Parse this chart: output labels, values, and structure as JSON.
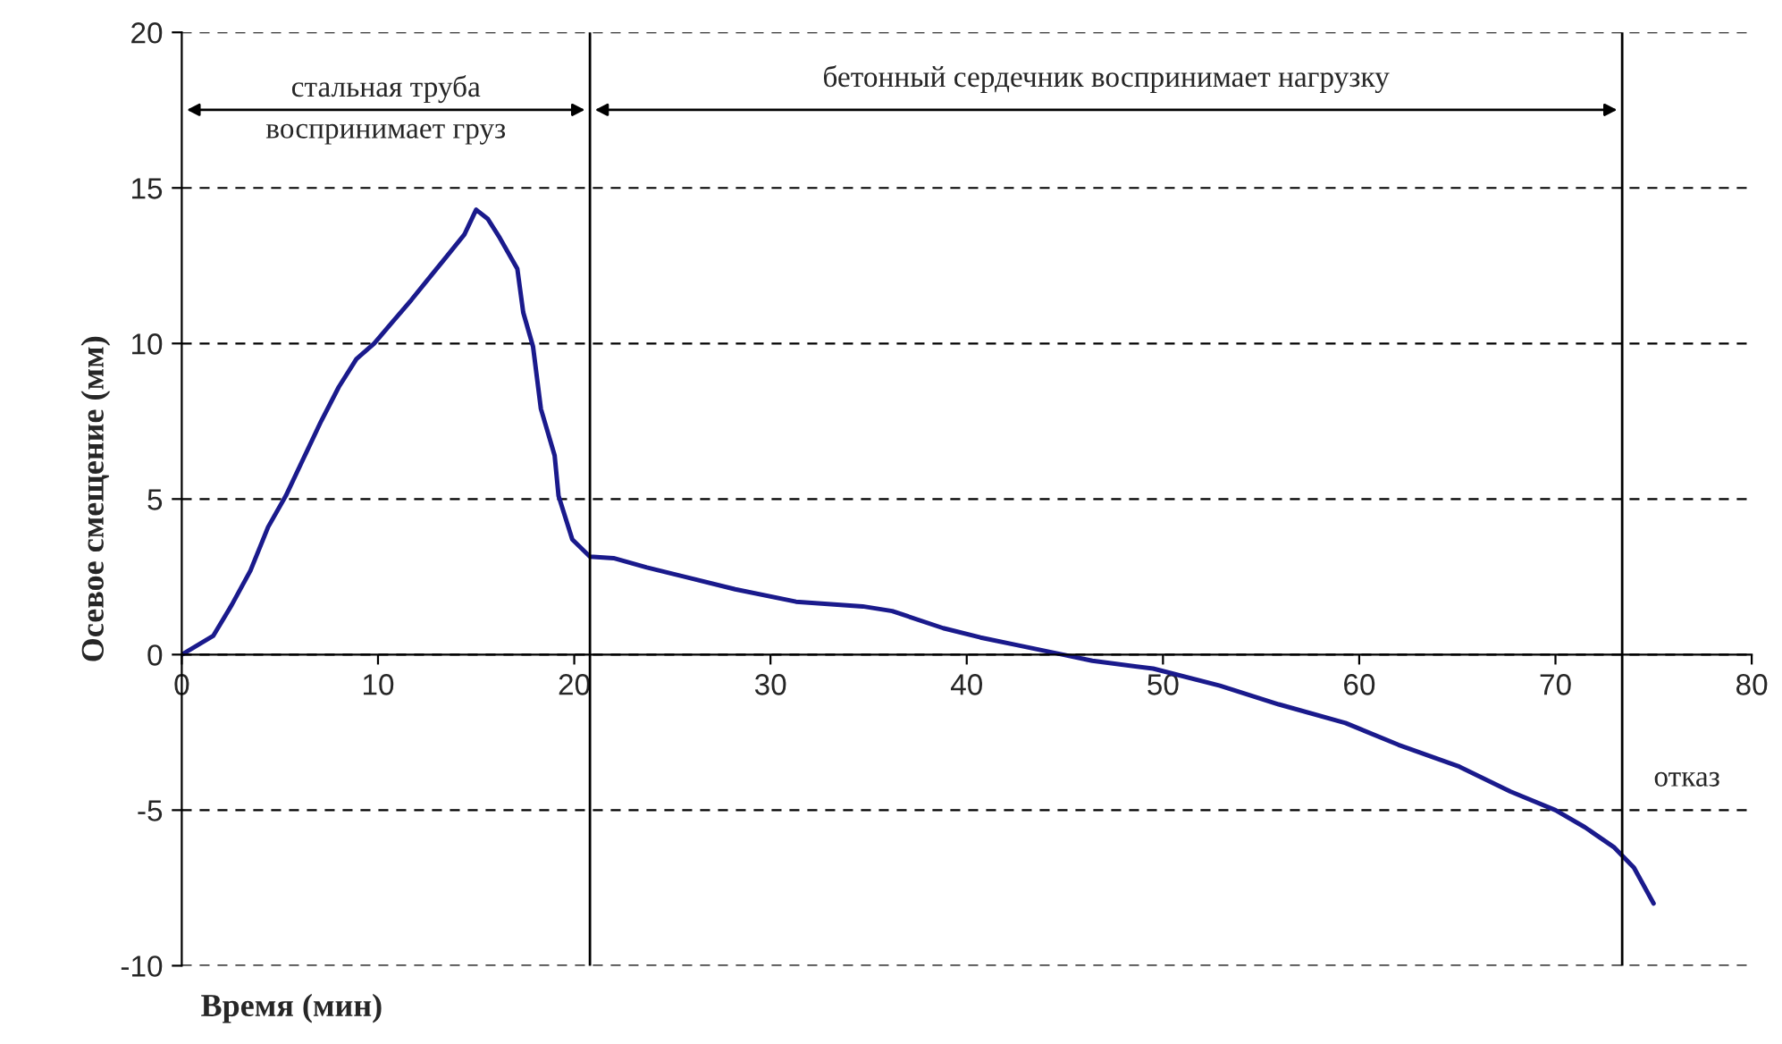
{
  "chart_data": {
    "type": "line",
    "xlabel": "Время (мин)",
    "ylabel": "Осевое смещение (мм)",
    "x": [
      0,
      1.6,
      2.55,
      3.5,
      4.4,
      5.3,
      6.2,
      7.1,
      8.0,
      8.9,
      9.8,
      10.75,
      11.7,
      12.6,
      13.5,
      14.4,
      15.0,
      15.6,
      16.2,
      17.1,
      17.4,
      17.9,
      18.3,
      19.0,
      19.2,
      19.9,
      20.8,
      22.0,
      23.7,
      28.2,
      31.3,
      34.7,
      36.2,
      38.8,
      40.7,
      42.6,
      44.9,
      46.4,
      49.5,
      52.9,
      55.9,
      59.3,
      62.0,
      65.1,
      67.7,
      70.0,
      71.5,
      73.0,
      74.0,
      75.0
    ],
    "series": [
      {
        "color": "#1a1a8c",
        "values": [
          0,
          0.6,
          1.6,
          2.7,
          4.1,
          5.1,
          6.3,
          7.5,
          8.6,
          9.5,
          10.0,
          10.7,
          11.4,
          12.1,
          12.8,
          13.5,
          14.3,
          14.0,
          13.4,
          12.4,
          11.0,
          9.9,
          7.9,
          6.4,
          5.1,
          3.7,
          3.15,
          3.1,
          2.8,
          2.1,
          1.7,
          1.55,
          1.4,
          0.85,
          0.55,
          0.3,
          0.0,
          -0.2,
          -0.45,
          -1.0,
          -1.6,
          -2.2,
          -2.9,
          -3.6,
          -4.4,
          -5.0,
          -5.55,
          -6.2,
          -6.85,
          -8.0
        ]
      }
    ],
    "xlim": [
      0,
      80
    ],
    "xticks": [
      0,
      10,
      20,
      30,
      40,
      50,
      60,
      70,
      80
    ],
    "ylim": [
      -10,
      20
    ],
    "yticks": [
      -10,
      -5,
      0,
      5,
      10,
      15,
      20
    ],
    "grid": "y",
    "marker": "none",
    "line_style": "solid",
    "legend": false,
    "ref_lines": [
      {
        "axis": "x",
        "value": 20.8,
        "color": "#000000"
      },
      {
        "axis": "x",
        "value": 73.4,
        "color": "#000000"
      }
    ],
    "annotations": [
      "стальная труба\nвоспринимает груз",
      "бетонный сердечник воспринимает нагрузку",
      "отказ"
    ]
  }
}
